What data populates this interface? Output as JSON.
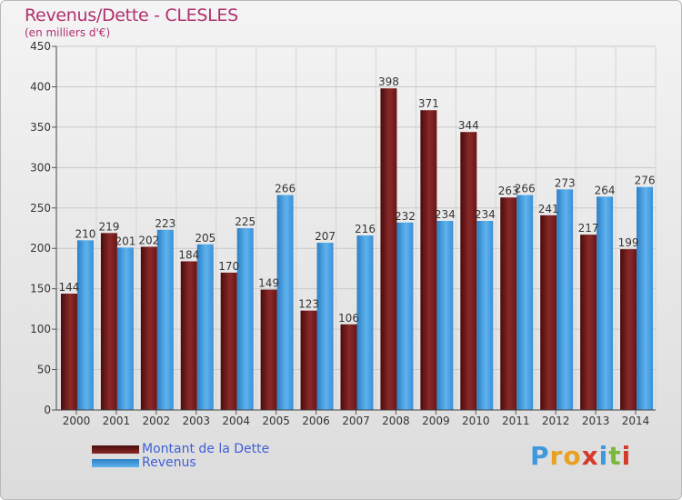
{
  "title": "Revenus/Dette - CLESLES",
  "subtitle": "(en milliers d'€)",
  "colors": {
    "debt": "#7a1c1c",
    "revenue": "#3e98dc",
    "title": "#b0306e",
    "legend_text": "#3f5fd6"
  },
  "legend": {
    "debt_label": "Montant de la Dette",
    "revenue_label": "Revenus"
  },
  "logo_text": "Proxiti",
  "chart_data": {
    "type": "bar",
    "title": "Revenus/Dette - CLESLES",
    "ylabel": "(en milliers d'€)",
    "xlabel": "",
    "ylim": [
      0,
      450
    ],
    "yticks": [
      0,
      50,
      100,
      150,
      200,
      250,
      300,
      350,
      400,
      450
    ],
    "grid": true,
    "legend_position": "bottom-left",
    "categories": [
      "2000",
      "2001",
      "2002",
      "2003",
      "2004",
      "2005",
      "2006",
      "2007",
      "2008",
      "2009",
      "2010",
      "2011",
      "2012",
      "2013",
      "2014"
    ],
    "series": [
      {
        "name": "Montant de la Dette",
        "values": [
          144,
          219,
          202,
          184,
          170,
          149,
          123,
          106,
          398,
          371,
          344,
          263,
          241,
          217,
          199
        ]
      },
      {
        "name": "Revenus",
        "values": [
          210,
          201,
          223,
          205,
          225,
          266,
          207,
          216,
          232,
          234,
          234,
          266,
          273,
          264,
          276
        ]
      }
    ]
  }
}
